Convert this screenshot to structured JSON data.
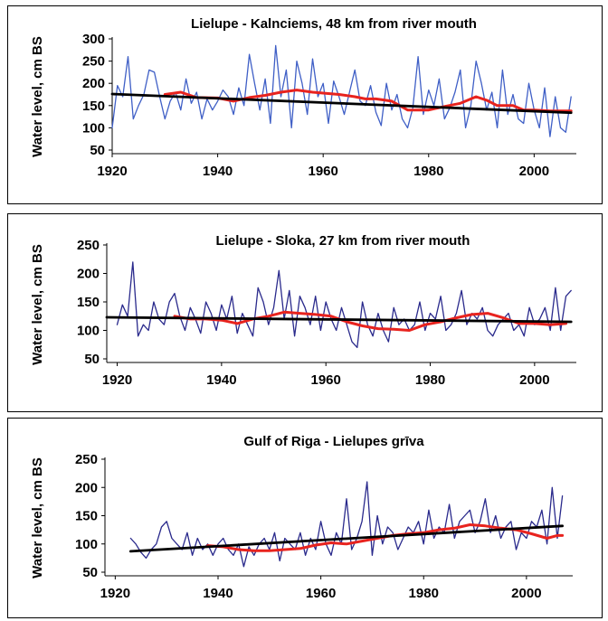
{
  "colors": {
    "observed": "#3f5fc6",
    "observed_dark": "#2a2a8c",
    "moving_avg": "#e8231e",
    "trend": "#000000"
  },
  "chart_data": [
    {
      "type": "line",
      "title": "Lielupe - Kalnciems, 48 km from river mouth",
      "ylabel": "Water level, cm BS",
      "xlabel": "",
      "xlim": [
        1920,
        2008
      ],
      "ylim": [
        50,
        300
      ],
      "x_ticks": [
        1920,
        1940,
        1960,
        1980,
        2000
      ],
      "y_ticks": [
        50,
        100,
        150,
        200,
        250,
        300
      ],
      "grid": false,
      "legend": "none",
      "series": [
        {
          "role": "observed",
          "x": [
            1920,
            1921,
            1922,
            1923,
            1924,
            1925,
            1926,
            1927,
            1928,
            1929,
            1930,
            1931,
            1932,
            1933,
            1934,
            1935,
            1936,
            1937,
            1938,
            1939,
            1940,
            1941,
            1942,
            1943,
            1944,
            1945,
            1946,
            1947,
            1948,
            1949,
            1950,
            1951,
            1952,
            1953,
            1954,
            1955,
            1956,
            1957,
            1958,
            1959,
            1960,
            1961,
            1962,
            1963,
            1964,
            1965,
            1966,
            1967,
            1968,
            1969,
            1970,
            1971,
            1972,
            1973,
            1974,
            1975,
            1976,
            1977,
            1978,
            1979,
            1980,
            1981,
            1982,
            1983,
            1984,
            1985,
            1986,
            1987,
            1988,
            1989,
            1990,
            1991,
            1992,
            1993,
            1994,
            1995,
            1996,
            1997,
            1998,
            1999,
            2000,
            2001,
            2002,
            2003,
            2004,
            2005,
            2006,
            2007
          ],
          "y": [
            100,
            195,
            170,
            260,
            120,
            150,
            175,
            230,
            225,
            170,
            120,
            160,
            180,
            140,
            210,
            155,
            180,
            120,
            165,
            140,
            160,
            185,
            170,
            130,
            190,
            150,
            265,
            200,
            140,
            210,
            110,
            285,
            170,
            230,
            100,
            250,
            200,
            130,
            255,
            170,
            200,
            110,
            205,
            170,
            130,
            180,
            230,
            160,
            150,
            195,
            135,
            105,
            200,
            140,
            175,
            120,
            100,
            145,
            260,
            130,
            185,
            150,
            210,
            120,
            145,
            180,
            230,
            100,
            150,
            250,
            200,
            140,
            180,
            100,
            230,
            130,
            175,
            120,
            110,
            200,
            140,
            100,
            190,
            80,
            170,
            100,
            90,
            170
          ]
        },
        {
          "role": "moving_avg",
          "x": [
            1930,
            1933,
            1936,
            1940,
            1943,
            1946,
            1949,
            1952,
            1955,
            1958,
            1960,
            1963,
            1966,
            1968,
            1970,
            1973,
            1976,
            1980,
            1983,
            1986,
            1989,
            1991,
            1993,
            1996,
            1998,
            2000,
            2003,
            2005,
            2007
          ],
          "y": [
            175,
            180,
            168,
            167,
            160,
            168,
            173,
            180,
            185,
            180,
            178,
            175,
            170,
            165,
            165,
            160,
            140,
            140,
            148,
            155,
            170,
            162,
            150,
            150,
            140,
            140,
            138,
            138,
            138
          ]
        },
        {
          "role": "trend",
          "x": [
            1920,
            2007
          ],
          "y": [
            176,
            134
          ]
        }
      ]
    },
    {
      "type": "line",
      "title": "Lielupe - Sloka, 27 km from river mouth",
      "ylabel": "Water level, cm BS",
      "xlabel": "",
      "xlim": [
        1918,
        2008
      ],
      "ylim": [
        50,
        250
      ],
      "x_ticks": [
        1920,
        1940,
        1960,
        1980,
        2000
      ],
      "y_ticks": [
        50,
        100,
        150,
        200,
        250
      ],
      "grid": false,
      "legend": "none",
      "series": [
        {
          "role": "observed",
          "x": [
            1920,
            1921,
            1922,
            1923,
            1924,
            1925,
            1926,
            1927,
            1928,
            1929,
            1930,
            1931,
            1932,
            1933,
            1934,
            1935,
            1936,
            1937,
            1938,
            1939,
            1940,
            1941,
            1942,
            1943,
            1944,
            1945,
            1946,
            1947,
            1948,
            1949,
            1950,
            1951,
            1952,
            1953,
            1954,
            1955,
            1956,
            1957,
            1958,
            1959,
            1960,
            1961,
            1962,
            1963,
            1964,
            1965,
            1966,
            1967,
            1968,
            1969,
            1970,
            1971,
            1972,
            1973,
            1974,
            1975,
            1976,
            1977,
            1978,
            1979,
            1980,
            1981,
            1982,
            1983,
            1984,
            1985,
            1986,
            1987,
            1988,
            1989,
            1990,
            1991,
            1992,
            1993,
            1994,
            1995,
            1996,
            1997,
            1998,
            1999,
            2000,
            2001,
            2002,
            2003,
            2004,
            2005,
            2006,
            2007
          ],
          "y": [
            110,
            145,
            125,
            220,
            90,
            110,
            100,
            150,
            120,
            110,
            150,
            165,
            125,
            100,
            140,
            120,
            95,
            150,
            130,
            100,
            145,
            120,
            160,
            95,
            130,
            110,
            90,
            175,
            150,
            110,
            140,
            205,
            120,
            170,
            90,
            160,
            140,
            110,
            160,
            100,
            150,
            120,
            100,
            140,
            110,
            80,
            70,
            150,
            110,
            90,
            130,
            100,
            80,
            140,
            110,
            120,
            100,
            110,
            150,
            100,
            130,
            120,
            160,
            100,
            110,
            130,
            170,
            110,
            130,
            120,
            140,
            100,
            90,
            110,
            120,
            130,
            100,
            110,
            90,
            140,
            110,
            120,
            140,
            100,
            175,
            100,
            160,
            170
          ]
        },
        {
          "role": "moving_avg",
          "x": [
            1931,
            1934,
            1937,
            1940,
            1943,
            1946,
            1949,
            1952,
            1955,
            1958,
            1961,
            1964,
            1967,
            1970,
            1973,
            1976,
            1979,
            1982,
            1985,
            1988,
            1991,
            1994,
            1997,
            2000,
            2003,
            2006
          ],
          "y": [
            125,
            120,
            120,
            118,
            112,
            120,
            125,
            132,
            130,
            128,
            125,
            115,
            108,
            103,
            102,
            100,
            110,
            115,
            122,
            128,
            130,
            122,
            112,
            112,
            110,
            112
          ]
        },
        {
          "role": "trend",
          "x": [
            1918,
            2007
          ],
          "y": [
            123,
            115
          ]
        }
      ]
    },
    {
      "type": "line",
      "title": "Gulf of Riga - Lielupes grīva",
      "ylabel": "Water level, cm BS",
      "xlabel": "",
      "xlim": [
        1918,
        2009
      ],
      "ylim": [
        50,
        250
      ],
      "x_ticks": [
        1920,
        1940,
        1960,
        1980,
        2000
      ],
      "y_ticks": [
        50,
        100,
        150,
        200,
        250
      ],
      "grid": false,
      "legend": "none",
      "series": [
        {
          "role": "observed",
          "x": [
            1923,
            1924,
            1925,
            1926,
            1927,
            1928,
            1929,
            1930,
            1931,
            1932,
            1933,
            1934,
            1935,
            1936,
            1937,
            1938,
            1939,
            1940,
            1941,
            1942,
            1943,
            1944,
            1945,
            1946,
            1947,
            1948,
            1949,
            1950,
            1951,
            1952,
            1953,
            1954,
            1955,
            1956,
            1957,
            1958,
            1959,
            1960,
            1961,
            1962,
            1963,
            1964,
            1965,
            1966,
            1967,
            1968,
            1969,
            1970,
            1971,
            1972,
            1973,
            1974,
            1975,
            1976,
            1977,
            1978,
            1979,
            1980,
            1981,
            1982,
            1983,
            1984,
            1985,
            1986,
            1987,
            1988,
            1989,
            1990,
            1991,
            1992,
            1993,
            1994,
            1995,
            1996,
            1997,
            1998,
            1999,
            2000,
            2001,
            2002,
            2003,
            2004,
            2005,
            2006,
            2007
          ],
          "y": [
            110,
            100,
            85,
            75,
            90,
            100,
            130,
            140,
            110,
            100,
            90,
            120,
            80,
            110,
            90,
            100,
            80,
            100,
            110,
            90,
            80,
            100,
            60,
            95,
            80,
            100,
            110,
            90,
            120,
            70,
            110,
            100,
            90,
            120,
            80,
            110,
            90,
            140,
            100,
            80,
            120,
            100,
            180,
            90,
            110,
            140,
            210,
            80,
            150,
            100,
            130,
            120,
            90,
            110,
            130,
            120,
            140,
            100,
            160,
            110,
            130,
            120,
            170,
            110,
            140,
            150,
            160,
            120,
            140,
            180,
            120,
            150,
            110,
            130,
            140,
            90,
            120,
            110,
            140,
            130,
            160,
            100,
            200,
            110,
            185
          ]
        },
        {
          "role": "moving_avg",
          "x": [
            1938,
            1941,
            1944,
            1947,
            1950,
            1953,
            1956,
            1959,
            1962,
            1965,
            1968,
            1971,
            1974,
            1977,
            1980,
            1983,
            1986,
            1989,
            1992,
            1995,
            1998,
            2001,
            2004,
            2006,
            2007
          ],
          "y": [
            97,
            95,
            90,
            88,
            88,
            90,
            92,
            98,
            102,
            100,
            105,
            110,
            115,
            118,
            120,
            125,
            128,
            134,
            132,
            128,
            125,
            118,
            110,
            115,
            115
          ]
        },
        {
          "role": "trend",
          "x": [
            1923,
            2007
          ],
          "y": [
            87,
            132
          ]
        }
      ]
    }
  ]
}
